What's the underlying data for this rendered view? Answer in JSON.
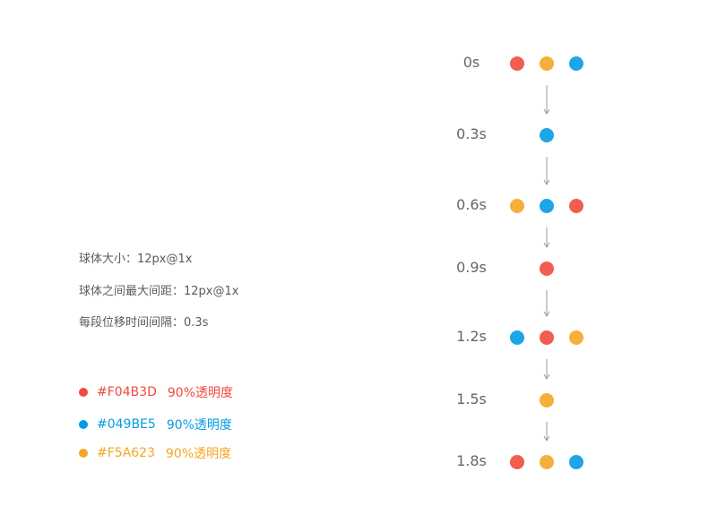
{
  "colors": {
    "red": "#F04B3D",
    "blue": "#049BE5",
    "orange": "#F5A623"
  },
  "specs": [
    "球体大小：12px@1x",
    "球体之间最大间距：12px@1x",
    "每段位移时间间隔：0.3s"
  ],
  "legend": [
    {
      "hex": "#F04B3D",
      "opacity_text": "90%透明度",
      "color": "#F04B3D"
    },
    {
      "hex": "#049BE5",
      "opacity_text": "90%透明度",
      "color": "#049BE5"
    },
    {
      "hex": "#F5A623",
      "opacity_text": "90%透明度",
      "color": "#F5A623"
    }
  ],
  "timeline": [
    {
      "time": "0s",
      "balls": [
        {
          "color": "red",
          "slot": "left"
        },
        {
          "color": "orange",
          "slot": "center"
        },
        {
          "color": "blue",
          "slot": "right"
        }
      ]
    },
    {
      "time": "0.3s",
      "balls": [
        {
          "color": "blue",
          "slot": "center"
        }
      ]
    },
    {
      "time": "0.6s",
      "balls": [
        {
          "color": "orange",
          "slot": "left"
        },
        {
          "color": "blue",
          "slot": "center"
        },
        {
          "color": "red",
          "slot": "right"
        }
      ]
    },
    {
      "time": "0.9s",
      "balls": [
        {
          "color": "red",
          "slot": "center"
        }
      ]
    },
    {
      "time": "1.2s",
      "balls": [
        {
          "color": "blue",
          "slot": "left"
        },
        {
          "color": "red",
          "slot": "center"
        },
        {
          "color": "orange",
          "slot": "right"
        }
      ]
    },
    {
      "time": "1.5s",
      "balls": [
        {
          "color": "orange",
          "slot": "center"
        }
      ]
    },
    {
      "time": "1.8s",
      "balls": [
        {
          "color": "red",
          "slot": "left"
        },
        {
          "color": "orange",
          "slot": "center"
        },
        {
          "color": "blue",
          "slot": "right"
        }
      ]
    }
  ],
  "arrow_color": "#999999",
  "ball_opacity": 0.9
}
